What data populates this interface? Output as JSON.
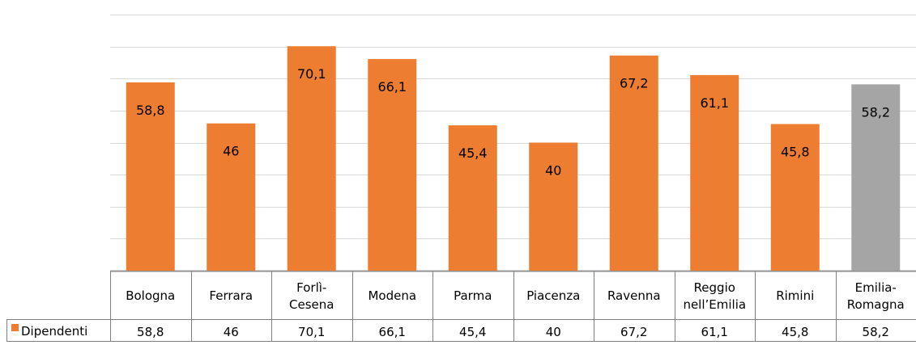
{
  "chart_data": {
    "type": "bar",
    "categories": [
      "Bologna",
      "Ferrara",
      "Forlì-\nCesena",
      "Modena",
      "Parma",
      "Piacenza",
      "Ravenna",
      "Reggio\nnell’Emilia",
      "Rimini",
      "Emilia-\nRomagna"
    ],
    "series": [
      {
        "name": "Dipendenti",
        "values": [
          58.8,
          46,
          70.1,
          66.1,
          45.4,
          40,
          67.2,
          61.1,
          45.8,
          58.2
        ],
        "labels": [
          "58,8",
          "46",
          "70,1",
          "66,1",
          "45,4",
          "40",
          "67,2",
          "61,1",
          "45,8",
          "58,2"
        ]
      }
    ],
    "ylim": [
      0,
      80
    ],
    "grid": true,
    "data_table": true,
    "colors": {
      "bar": "#ED7D31",
      "highlight_bar": "#A5A5A5",
      "grid": "#D9D9D9",
      "table_border": "#7F7F7F",
      "text": "#000000"
    },
    "legend_key": "orange-square"
  }
}
